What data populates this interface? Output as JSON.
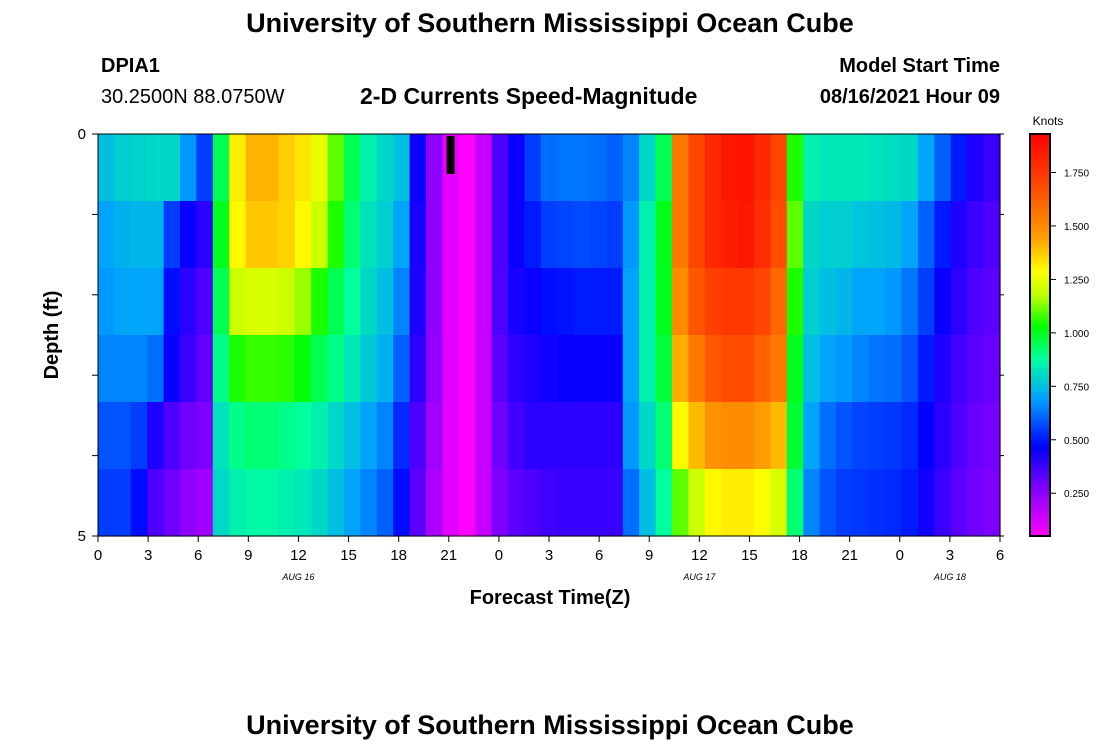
{
  "page": {
    "title_top": "University of Southern Mississippi Ocean Cube",
    "title_bottom": "University of Southern Mississippi Ocean Cube",
    "station_id": "DPIA1",
    "coordinates": "30.2500N  88.0750W",
    "subtitle": "2-D Currents Speed-Magnitude",
    "model_label": "Model Start Time",
    "model_time": "08/16/2021 Hour 09"
  },
  "chart_data": {
    "type": "heatmap",
    "title": "2-D Currents Speed-Magnitude",
    "xlabel": "Forecast Time(Z)",
    "ylabel": "Depth (ft)",
    "y_ticks": [
      {
        "value": 0,
        "label": "0"
      },
      {
        "value": 5,
        "label": "5"
      }
    ],
    "y_range": [
      0,
      5
    ],
    "n_time_steps": 55,
    "x_tick_labels": [
      "0",
      "3",
      "6",
      "9",
      "12",
      "15",
      "18",
      "21",
      "0",
      "3",
      "6",
      "9",
      "12",
      "15",
      "18",
      "21",
      "0",
      "3",
      "6"
    ],
    "x_tick_steps": [
      0,
      3,
      6,
      9,
      12,
      15,
      18,
      21,
      24,
      27,
      30,
      33,
      36,
      39,
      42,
      45,
      48,
      51,
      54
    ],
    "date_labels": [
      {
        "label": "AUG 16",
        "step": 12
      },
      {
        "label": "AUG 17",
        "step": 36
      },
      {
        "label": "AUG 18",
        "step": 51
      }
    ],
    "current_time_marker_step": 21,
    "colorbar": {
      "unit_label": "Knots",
      "min": 0.05,
      "max": 1.93,
      "ticks": [
        0.25,
        0.5,
        0.75,
        1.0,
        1.25,
        1.5,
        1.75
      ],
      "tick_labels": [
        "0.250",
        "0.500",
        "0.750",
        "1.000",
        "1.250",
        "1.500",
        "1.750"
      ]
    },
    "depth_layers": [
      {
        "name": "layer-1",
        "values": [
          0.75,
          0.78,
          0.79,
          0.8,
          0.8,
          0.68,
          0.55,
          0.95,
          1.32,
          1.41,
          1.41,
          1.37,
          1.33,
          1.25,
          1.1,
          0.95,
          0.85,
          0.8,
          0.75,
          0.45,
          0.25,
          0.1,
          0.05,
          0.15,
          0.35,
          0.45,
          0.55,
          0.62,
          0.63,
          0.63,
          0.62,
          0.6,
          0.65,
          0.8,
          0.95,
          1.55,
          1.7,
          1.8,
          1.85,
          1.87,
          1.8,
          1.7,
          1.05,
          0.85,
          0.83,
          0.83,
          0.83,
          0.82,
          0.81,
          0.8,
          0.7,
          0.6,
          0.5,
          0.42,
          0.38
        ]
      },
      {
        "name": "layer-2",
        "values": [
          0.7,
          0.72,
          0.73,
          0.73,
          0.55,
          0.45,
          0.4,
          1.0,
          1.3,
          1.38,
          1.38,
          1.36,
          1.3,
          1.2,
          1.05,
          0.92,
          0.82,
          0.78,
          0.7,
          0.43,
          0.25,
          0.1,
          0.05,
          0.15,
          0.35,
          0.45,
          0.5,
          0.55,
          0.56,
          0.57,
          0.56,
          0.55,
          0.68,
          0.85,
          1.0,
          1.55,
          1.7,
          1.8,
          1.83,
          1.85,
          1.78,
          1.68,
          1.1,
          0.8,
          0.78,
          0.78,
          0.76,
          0.75,
          0.74,
          0.7,
          0.6,
          0.5,
          0.42,
          0.38,
          0.35
        ]
      },
      {
        "name": "layer-3",
        "values": [
          0.68,
          0.7,
          0.7,
          0.7,
          0.48,
          0.4,
          0.35,
          0.95,
          1.2,
          1.22,
          1.22,
          1.2,
          1.15,
          1.05,
          0.95,
          0.88,
          0.8,
          0.75,
          0.65,
          0.42,
          0.25,
          0.1,
          0.05,
          0.15,
          0.35,
          0.43,
          0.45,
          0.48,
          0.49,
          0.5,
          0.5,
          0.5,
          0.7,
          0.85,
          1.0,
          1.5,
          1.65,
          1.72,
          1.75,
          1.75,
          1.7,
          1.6,
          1.05,
          0.78,
          0.75,
          0.73,
          0.7,
          0.7,
          0.68,
          0.63,
          0.55,
          0.45,
          0.4,
          0.35,
          0.33
        ]
      },
      {
        "name": "layer-4",
        "values": [
          0.65,
          0.65,
          0.65,
          0.62,
          0.45,
          0.38,
          0.32,
          0.9,
          1.05,
          1.07,
          1.07,
          1.06,
          1.02,
          0.95,
          0.9,
          0.83,
          0.77,
          0.72,
          0.6,
          0.4,
          0.24,
          0.1,
          0.05,
          0.15,
          0.33,
          0.4,
          0.42,
          0.44,
          0.45,
          0.45,
          0.45,
          0.45,
          0.7,
          0.85,
          0.97,
          1.42,
          1.55,
          1.65,
          1.68,
          1.68,
          1.62,
          1.55,
          1.0,
          0.75,
          0.7,
          0.68,
          0.65,
          0.63,
          0.62,
          0.58,
          0.5,
          0.42,
          0.37,
          0.33,
          0.31
        ]
      },
      {
        "name": "layer-5",
        "values": [
          0.58,
          0.58,
          0.55,
          0.42,
          0.35,
          0.3,
          0.28,
          0.82,
          0.9,
          0.92,
          0.92,
          0.9,
          0.88,
          0.85,
          0.8,
          0.75,
          0.7,
          0.65,
          0.52,
          0.35,
          0.22,
          0.1,
          0.05,
          0.15,
          0.3,
          0.37,
          0.4,
          0.4,
          0.4,
          0.4,
          0.4,
          0.4,
          0.68,
          0.8,
          0.92,
          1.3,
          1.4,
          1.48,
          1.5,
          1.5,
          1.45,
          1.4,
          0.98,
          0.7,
          0.62,
          0.58,
          0.56,
          0.55,
          0.54,
          0.52,
          0.46,
          0.4,
          0.35,
          0.31,
          0.29
        ]
      },
      {
        "name": "layer-6",
        "values": [
          0.55,
          0.55,
          0.48,
          0.35,
          0.3,
          0.25,
          0.22,
          0.8,
          0.85,
          0.87,
          0.87,
          0.85,
          0.83,
          0.8,
          0.75,
          0.7,
          0.65,
          0.6,
          0.48,
          0.33,
          0.2,
          0.1,
          0.05,
          0.15,
          0.28,
          0.33,
          0.35,
          0.37,
          0.38,
          0.38,
          0.38,
          0.38,
          0.62,
          0.75,
          0.88,
          1.1,
          1.2,
          1.3,
          1.32,
          1.32,
          1.28,
          1.22,
          0.92,
          0.65,
          0.58,
          0.55,
          0.54,
          0.53,
          0.52,
          0.5,
          0.44,
          0.38,
          0.33,
          0.3,
          0.28
        ]
      }
    ]
  }
}
